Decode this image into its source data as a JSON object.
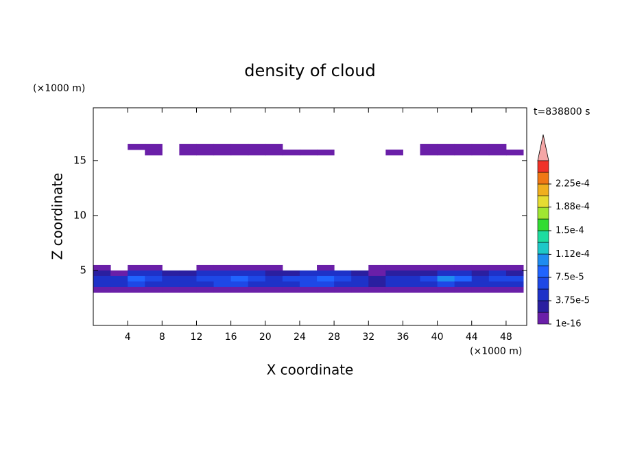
{
  "chart_data": {
    "type": "contour",
    "title": "density of cloud",
    "x_label": "X coordinate",
    "y_label": "Z coordinate",
    "x_unit": "(×1000 m)",
    "y_unit": "(×1000 m)",
    "time_label": "t=838800 s",
    "xlim": [
      0,
      50.4
    ],
    "ylim": [
      0,
      19.8
    ],
    "xticks": [
      4,
      8,
      12,
      16,
      20,
      24,
      28,
      32,
      36,
      40,
      44,
      48
    ],
    "yticks": [
      5,
      10,
      15
    ],
    "x": [
      1,
      3,
      5,
      7,
      9,
      11,
      13,
      15,
      17,
      19,
      21,
      23,
      25,
      27,
      29,
      31,
      33,
      35,
      37,
      39,
      41,
      43,
      45,
      47,
      49
    ],
    "z": [
      16.25,
      15.75,
      5.25,
      4.75,
      4.25,
      3.75,
      3.25
    ],
    "values": [
      [
        null,
        null,
        1e-05,
        1e-05,
        null,
        1e-05,
        1e-05,
        1e-05,
        1e-05,
        1e-05,
        1e-05,
        null,
        null,
        null,
        null,
        null,
        null,
        null,
        null,
        1e-05,
        1e-05,
        1e-05,
        1e-05,
        1e-05,
        null
      ],
      [
        null,
        null,
        null,
        1e-05,
        null,
        1e-05,
        1e-05,
        1e-05,
        1e-05,
        1e-05,
        1e-05,
        1e-05,
        1e-05,
        1e-05,
        null,
        null,
        null,
        1e-05,
        null,
        1e-05,
        1e-05,
        1e-05,
        1e-05,
        1e-05,
        1e-05
      ],
      [
        1e-05,
        null,
        1e-05,
        1e-05,
        null,
        null,
        1e-05,
        1e-05,
        1e-05,
        1e-05,
        1e-05,
        null,
        null,
        1e-05,
        null,
        null,
        1e-05,
        1e-05,
        1e-05,
        1e-05,
        1e-05,
        1e-05,
        1e-05,
        1e-05,
        1e-05
      ],
      [
        2e-05,
        1e-05,
        4e-05,
        5e-05,
        2e-05,
        3e-05,
        4e-05,
        4e-05,
        5e-05,
        4e-05,
        3e-05,
        3e-05,
        4e-05,
        5e-05,
        4e-05,
        2e-05,
        1e-05,
        2e-05,
        2e-05,
        3e-05,
        5e-05,
        4e-05,
        3e-05,
        4e-05,
        3e-05
      ],
      [
        4e-05,
        4e-05,
        9e-05,
        6e-05,
        4e-05,
        5e-05,
        6e-05,
        7e-05,
        8e-05,
        6e-05,
        5e-05,
        6e-05,
        7e-05,
        8e-05,
        7e-05,
        5e-05,
        2e-05,
        4e-05,
        4e-05,
        6e-05,
        0.00011,
        8e-05,
        5e-05,
        7e-05,
        6e-05
      ],
      [
        5e-05,
        4e-05,
        6e-05,
        5e-05,
        4e-05,
        5e-05,
        5e-05,
        6e-05,
        6e-05,
        5e-05,
        5e-05,
        5e-05,
        6e-05,
        6e-05,
        5e-05,
        4e-05,
        3e-05,
        4e-05,
        4e-05,
        5e-05,
        6e-05,
        5e-05,
        5e-05,
        5e-05,
        5e-05
      ],
      [
        1e-05,
        1e-05,
        1e-05,
        1e-05,
        1e-05,
        1e-05,
        1e-05,
        1e-05,
        1e-05,
        1e-05,
        1e-05,
        1e-05,
        1e-05,
        1e-05,
        1e-05,
        1e-05,
        1e-05,
        1e-05,
        1e-05,
        1e-05,
        1e-05,
        1e-05,
        1e-05,
        1e-05,
        1e-05
      ]
    ],
    "colorbar_ticks": [
      {
        "value": 1e-16,
        "label": "1e-16"
      },
      {
        "value": 3.75e-05,
        "label": "3.75e-5"
      },
      {
        "value": 7.5e-05,
        "label": "7.5e-5"
      },
      {
        "value": 0.000112,
        "label": "1.12e-4"
      },
      {
        "value": 0.00015,
        "label": "1.5e-4"
      },
      {
        "value": 0.000188,
        "label": "1.88e-4"
      },
      {
        "value": 0.000225,
        "label": "2.25e-4"
      }
    ],
    "colors": [
      "#6a1fa8",
      "#2a1fa0",
      "#1e32c8",
      "#1e48e6",
      "#2064ff",
      "#1e8cf0",
      "#1ec8c8",
      "#1edca0",
      "#32dc32",
      "#a0e632",
      "#e6dc32",
      "#f0af1e",
      "#f07814",
      "#f03228"
    ],
    "extend_color": "#f4a6a6"
  }
}
